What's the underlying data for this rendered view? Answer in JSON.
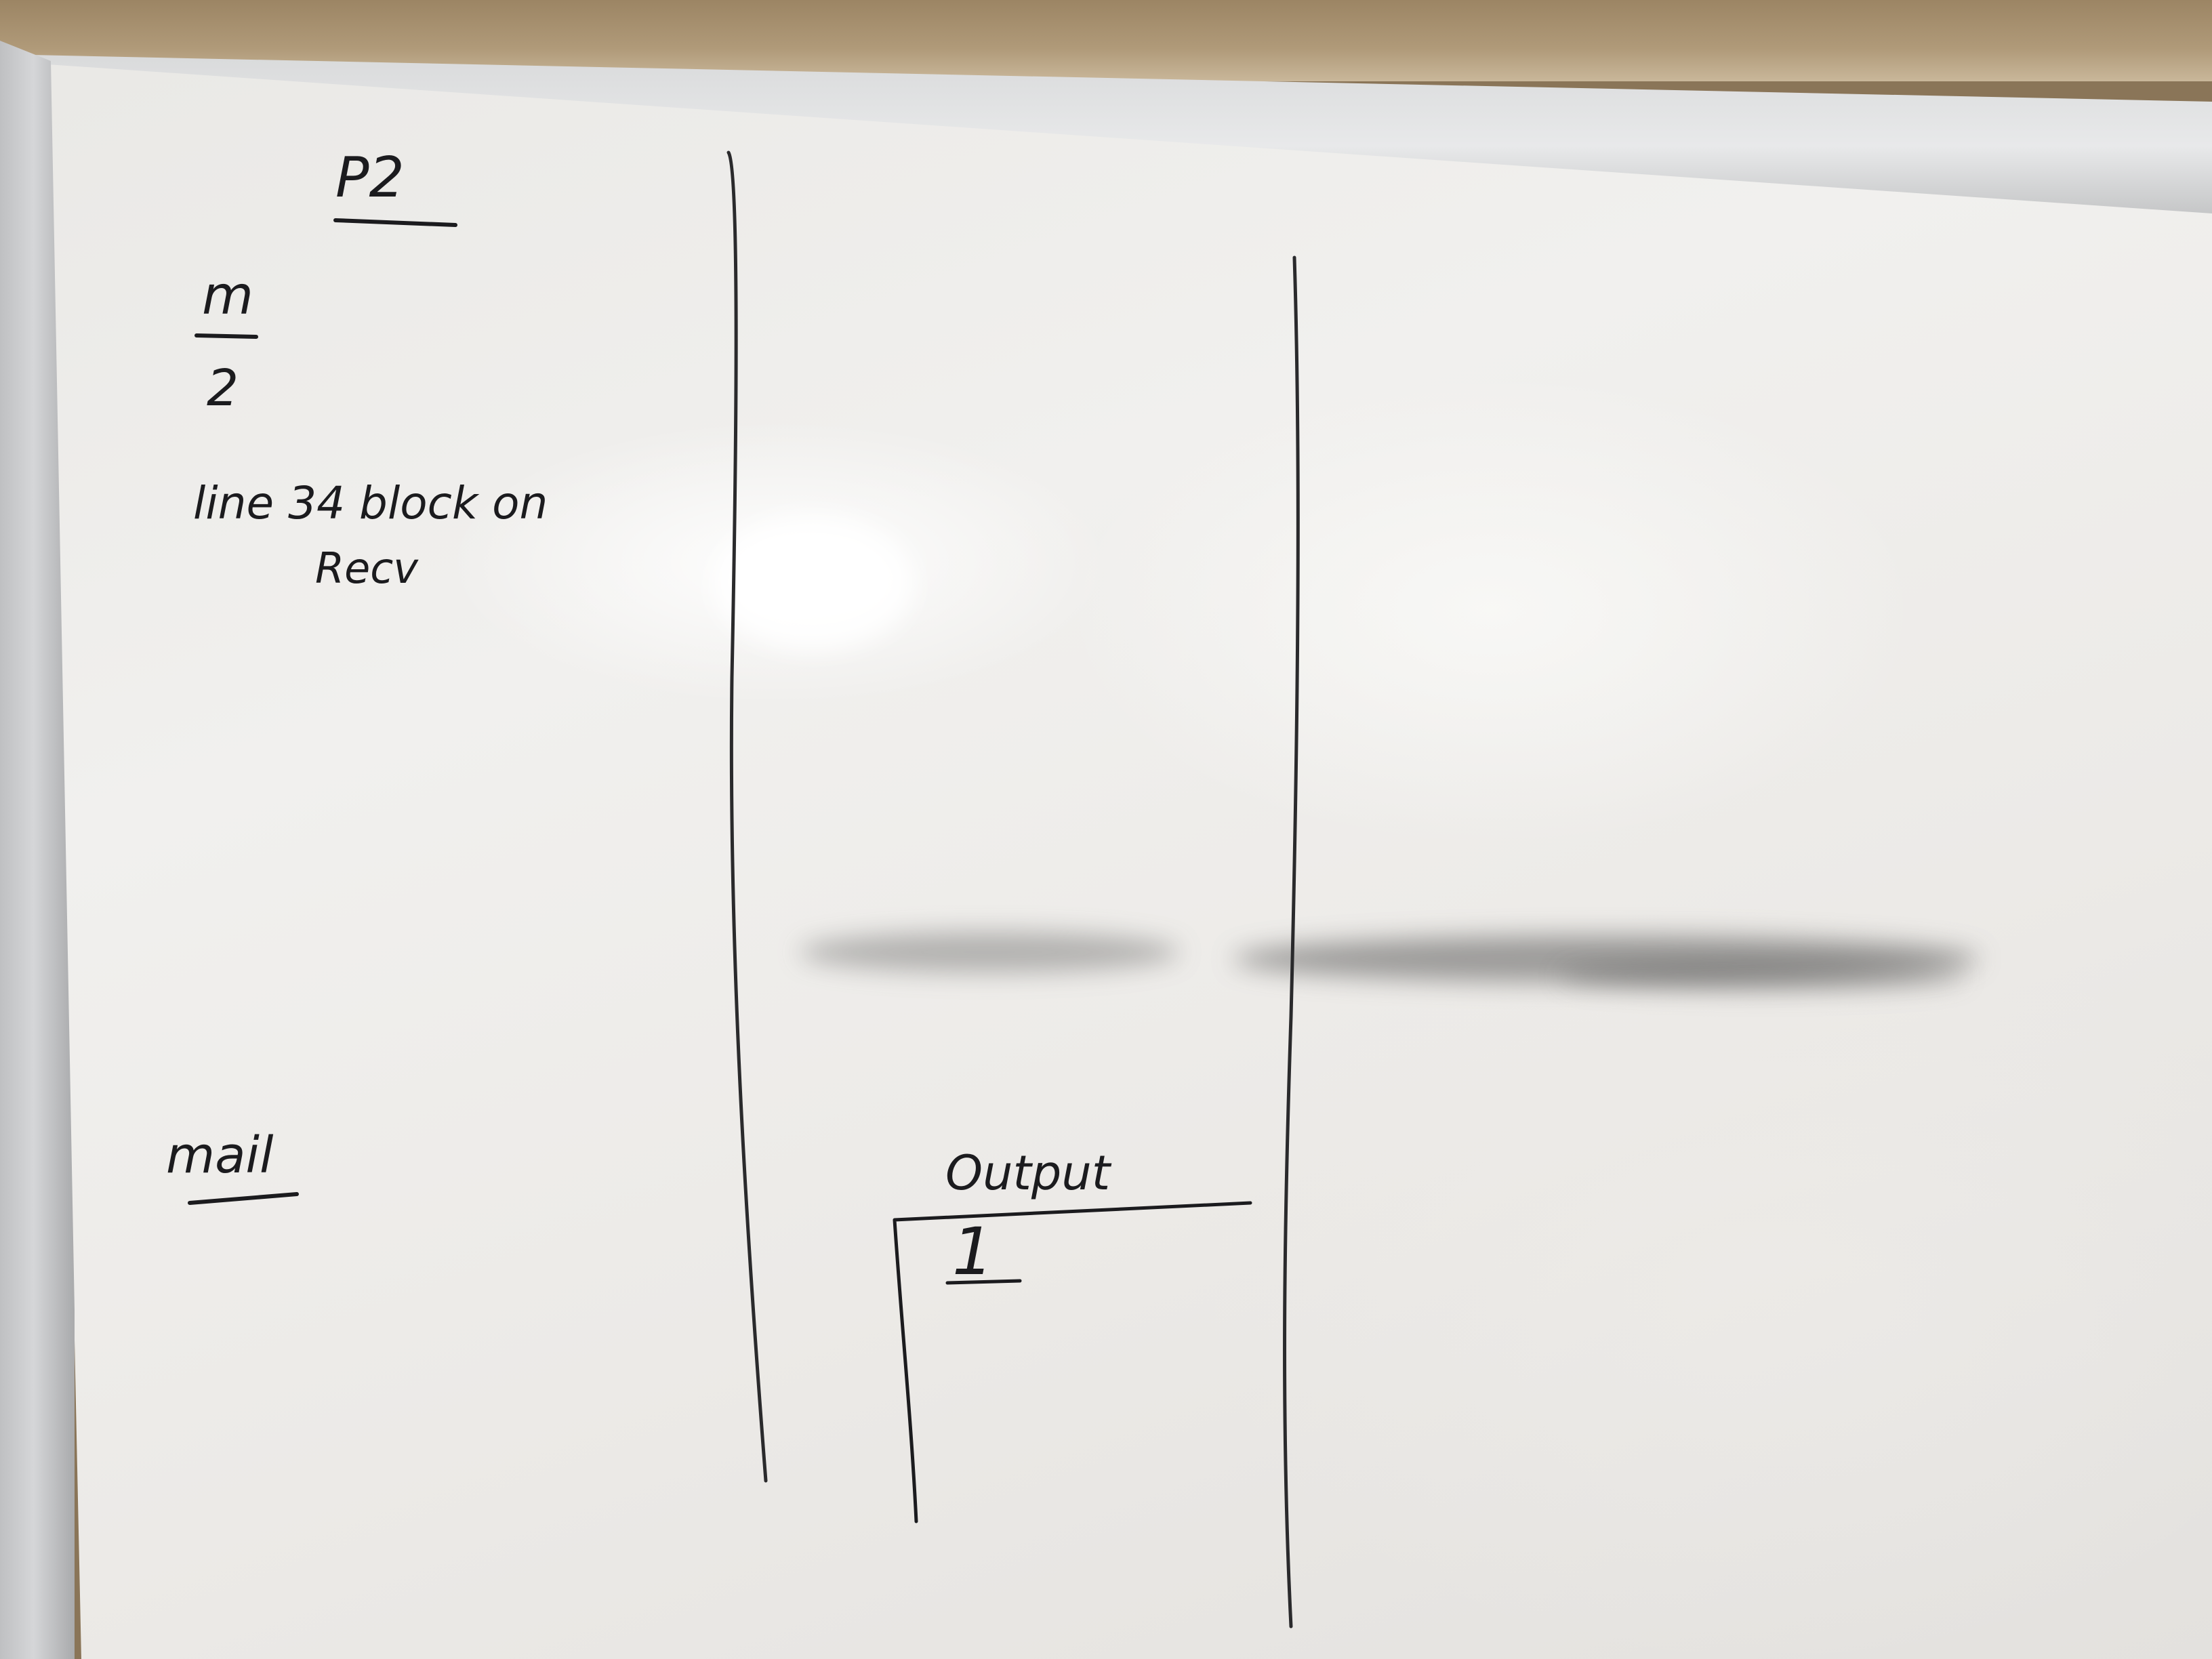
{
  "whiteboard": {
    "column_1": {
      "heading": "P2",
      "fraction_numerator": "m",
      "fraction_denominator": "2",
      "note_line_1": "line 34 block on",
      "note_line_2": "Recv",
      "mail_label": "mail"
    },
    "output_box": {
      "label": "Output",
      "value": "1"
    }
  },
  "colors": {
    "marker_ink": "#1b1b1e",
    "board_surface": "#eceae7",
    "frame": "#d6d7d8",
    "wall": "#9c8564"
  }
}
